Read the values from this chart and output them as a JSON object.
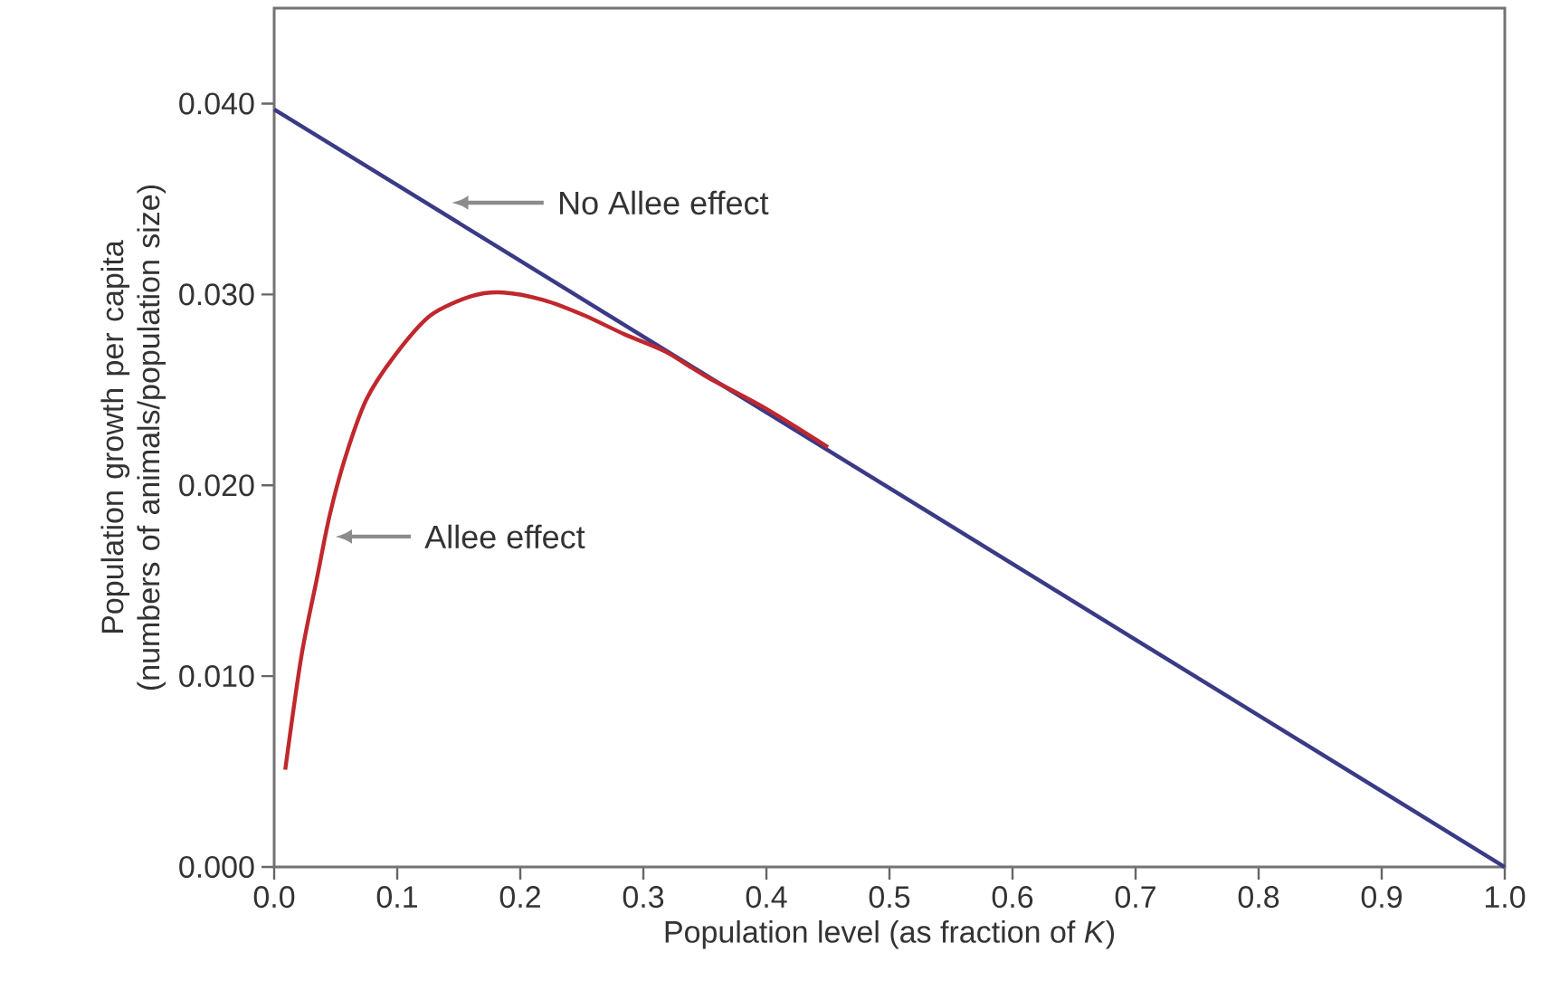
{
  "chart_data": {
    "type": "line",
    "xlabel": "Population level (as fraction of *K*)",
    "ylabel": "Population growth per capita (numbers of animals/population size)",
    "xlim": [
      0,
      1
    ],
    "ylim": [
      0,
      0.045
    ],
    "xticks": [
      {
        "value": 0,
        "label": "0.0"
      },
      {
        "value": 0.1,
        "label": "0.1"
      },
      {
        "value": 0.2,
        "label": "0.2"
      },
      {
        "value": 0.3,
        "label": "0.3"
      },
      {
        "value": 0.4,
        "label": "0.4"
      },
      {
        "value": 0.5,
        "label": "0.5"
      },
      {
        "value": 0.6,
        "label": "0.6"
      },
      {
        "value": 0.7,
        "label": "0.7"
      },
      {
        "value": 0.8,
        "label": "0.8"
      },
      {
        "value": 0.9,
        "label": "0.9"
      },
      {
        "value": 1,
        "label": "1.0"
      }
    ],
    "yticks": [
      {
        "value": 0,
        "label": "0.000"
      },
      {
        "value": 0.01,
        "label": "0.010"
      },
      {
        "value": 0.02,
        "label": "0.020"
      },
      {
        "value": 0.03,
        "label": "0.030"
      },
      {
        "value": 0.04,
        "label": "0.040"
      }
    ],
    "series": [
      {
        "color": "#3a3a86",
        "x": [
          0,
          1
        ],
        "values": [
          0.0397,
          0
        ]
      },
      {
        "color": "#c0282d",
        "x": [
          0.009,
          0.022,
          0.035,
          0.045,
          0.058,
          0.075,
          0.098,
          0.127,
          0.16,
          0.186,
          0.219,
          0.252,
          0.285,
          0.318,
          0.351,
          0.4,
          0.45
        ],
        "values": [
          0.0051,
          0.011,
          0.0152,
          0.0184,
          0.0215,
          0.0245,
          0.0268,
          0.0289,
          0.0299,
          0.0301,
          0.0297,
          0.0289,
          0.0279,
          0.027,
          0.0257,
          0.024,
          0.022
        ]
      }
    ],
    "annotations": [
      "No Allee effect",
      "Allee effect"
    ],
    "marker": "none",
    "line_style": "solid"
  }
}
